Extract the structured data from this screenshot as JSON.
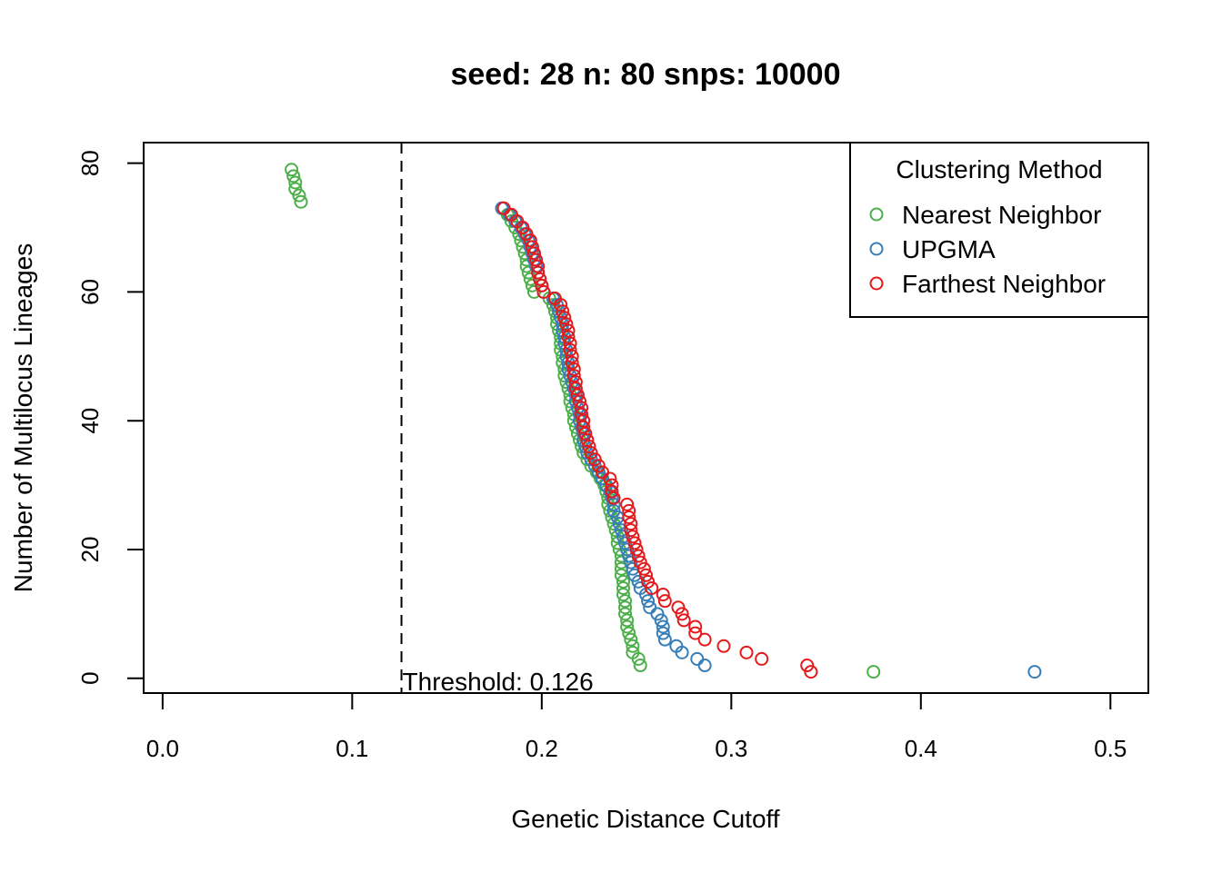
{
  "chart_data": {
    "type": "scatter",
    "title": "seed: 28 n: 80 snps: 10000",
    "xlabel": "Genetic Distance Cutoff",
    "ylabel": "Number of Multilocus Lineages",
    "xlim": [
      -0.01,
      0.52
    ],
    "ylim": [
      -2.3,
      83.2
    ],
    "xticks": [
      0.0,
      0.1,
      0.2,
      0.3,
      0.4,
      0.5
    ],
    "xtick_labels": [
      "0.0",
      "0.1",
      "0.2",
      "0.3",
      "0.4",
      "0.5"
    ],
    "yticks": [
      0,
      20,
      40,
      60,
      80
    ],
    "ytick_labels": [
      "0",
      "20",
      "40",
      "60",
      "80"
    ],
    "grid": false,
    "legend": {
      "title": "Clustering Method",
      "placement": "top-right"
    },
    "threshold": {
      "x": 0.126,
      "label": "Threshold: 0.126",
      "style": "dashed"
    },
    "series": [
      {
        "name": "Nearest Neighbor",
        "color": "#4DAF4A",
        "points": [
          [
            0.068,
            79
          ],
          [
            0.069,
            78
          ],
          [
            0.07,
            77
          ],
          [
            0.07,
            76
          ],
          [
            0.072,
            75
          ],
          [
            0.073,
            74
          ],
          [
            0.179,
            73
          ],
          [
            0.182,
            72
          ],
          [
            0.184,
            71
          ],
          [
            0.186,
            70
          ],
          [
            0.188,
            69
          ],
          [
            0.189,
            68
          ],
          [
            0.19,
            67
          ],
          [
            0.191,
            66
          ],
          [
            0.192,
            65
          ],
          [
            0.192,
            64
          ],
          [
            0.193,
            63
          ],
          [
            0.194,
            62
          ],
          [
            0.195,
            61
          ],
          [
            0.196,
            60
          ],
          [
            0.204,
            59
          ],
          [
            0.206,
            58
          ],
          [
            0.207,
            57
          ],
          [
            0.208,
            56
          ],
          [
            0.208,
            55
          ],
          [
            0.209,
            54
          ],
          [
            0.21,
            53
          ],
          [
            0.21,
            52
          ],
          [
            0.21,
            51
          ],
          [
            0.211,
            50
          ],
          [
            0.211,
            49
          ],
          [
            0.212,
            48
          ],
          [
            0.212,
            47
          ],
          [
            0.213,
            46
          ],
          [
            0.214,
            45
          ],
          [
            0.215,
            44
          ],
          [
            0.215,
            43
          ],
          [
            0.216,
            42
          ],
          [
            0.217,
            41
          ],
          [
            0.217,
            40
          ],
          [
            0.218,
            39
          ],
          [
            0.219,
            38
          ],
          [
            0.22,
            37
          ],
          [
            0.221,
            36
          ],
          [
            0.222,
            35
          ],
          [
            0.224,
            34
          ],
          [
            0.226,
            33
          ],
          [
            0.229,
            32
          ],
          [
            0.231,
            31
          ],
          [
            0.233,
            30
          ],
          [
            0.234,
            29
          ],
          [
            0.235,
            28
          ],
          [
            0.235,
            27
          ],
          [
            0.236,
            26
          ],
          [
            0.237,
            25
          ],
          [
            0.238,
            24
          ],
          [
            0.239,
            23
          ],
          [
            0.24,
            22
          ],
          [
            0.24,
            21
          ],
          [
            0.241,
            20
          ],
          [
            0.242,
            19
          ],
          [
            0.242,
            18
          ],
          [
            0.242,
            17
          ],
          [
            0.242,
            16
          ],
          [
            0.243,
            15
          ],
          [
            0.243,
            14
          ],
          [
            0.243,
            13
          ],
          [
            0.244,
            12
          ],
          [
            0.244,
            11
          ],
          [
            0.244,
            10
          ],
          [
            0.245,
            9
          ],
          [
            0.245,
            8
          ],
          [
            0.246,
            7
          ],
          [
            0.247,
            6
          ],
          [
            0.248,
            5
          ],
          [
            0.248,
            4
          ],
          [
            0.251,
            3
          ],
          [
            0.252,
            2
          ],
          [
            0.375,
            1
          ]
        ]
      },
      {
        "name": "UPGMA",
        "color": "#377EB8",
        "points": [
          [
            0.179,
            73
          ],
          [
            0.183,
            72
          ],
          [
            0.186,
            71
          ],
          [
            0.189,
            70
          ],
          [
            0.191,
            69
          ],
          [
            0.193,
            68
          ],
          [
            0.194,
            67
          ],
          [
            0.195,
            66
          ],
          [
            0.196,
            65
          ],
          [
            0.197,
            64
          ],
          [
            0.198,
            63
          ],
          [
            0.199,
            62
          ],
          [
            0.2,
            61
          ],
          [
            0.201,
            60
          ],
          [
            0.206,
            59
          ],
          [
            0.208,
            58
          ],
          [
            0.209,
            57
          ],
          [
            0.21,
            56
          ],
          [
            0.211,
            55
          ],
          [
            0.211,
            54
          ],
          [
            0.212,
            53
          ],
          [
            0.212,
            52
          ],
          [
            0.213,
            51
          ],
          [
            0.213,
            50
          ],
          [
            0.214,
            49
          ],
          [
            0.214,
            48
          ],
          [
            0.215,
            47
          ],
          [
            0.216,
            46
          ],
          [
            0.217,
            45
          ],
          [
            0.218,
            44
          ],
          [
            0.218,
            43
          ],
          [
            0.219,
            42
          ],
          [
            0.22,
            41
          ],
          [
            0.22,
            40
          ],
          [
            0.221,
            39
          ],
          [
            0.222,
            38
          ],
          [
            0.222,
            37
          ],
          [
            0.223,
            36
          ],
          [
            0.224,
            35
          ],
          [
            0.226,
            34
          ],
          [
            0.228,
            33
          ],
          [
            0.23,
            32
          ],
          [
            0.232,
            31
          ],
          [
            0.234,
            30
          ],
          [
            0.236,
            29
          ],
          [
            0.237,
            28
          ],
          [
            0.238,
            27
          ],
          [
            0.238,
            26
          ],
          [
            0.24,
            25
          ],
          [
            0.241,
            24
          ],
          [
            0.242,
            23
          ],
          [
            0.243,
            22
          ],
          [
            0.244,
            21
          ],
          [
            0.245,
            20
          ],
          [
            0.246,
            19
          ],
          [
            0.247,
            18
          ],
          [
            0.248,
            17
          ],
          [
            0.249,
            16
          ],
          [
            0.251,
            15
          ],
          [
            0.252,
            14
          ],
          [
            0.255,
            13
          ],
          [
            0.256,
            12
          ],
          [
            0.257,
            11
          ],
          [
            0.261,
            10
          ],
          [
            0.263,
            9
          ],
          [
            0.264,
            8
          ],
          [
            0.264,
            7
          ],
          [
            0.265,
            6
          ],
          [
            0.271,
            5
          ],
          [
            0.274,
            4
          ],
          [
            0.282,
            3
          ],
          [
            0.286,
            2
          ],
          [
            0.46,
            1
          ]
        ]
      },
      {
        "name": "Farthest Neighbor",
        "color": "#E41A1C",
        "points": [
          [
            0.18,
            73
          ],
          [
            0.184,
            72
          ],
          [
            0.187,
            71
          ],
          [
            0.19,
            70
          ],
          [
            0.192,
            69
          ],
          [
            0.194,
            68
          ],
          [
            0.195,
            67
          ],
          [
            0.196,
            66
          ],
          [
            0.197,
            65
          ],
          [
            0.198,
            64
          ],
          [
            0.198,
            63
          ],
          [
            0.199,
            62
          ],
          [
            0.2,
            61
          ],
          [
            0.201,
            60
          ],
          [
            0.207,
            59
          ],
          [
            0.21,
            58
          ],
          [
            0.211,
            57
          ],
          [
            0.212,
            56
          ],
          [
            0.213,
            55
          ],
          [
            0.214,
            54
          ],
          [
            0.214,
            53
          ],
          [
            0.215,
            52
          ],
          [
            0.215,
            51
          ],
          [
            0.216,
            50
          ],
          [
            0.216,
            49
          ],
          [
            0.217,
            48
          ],
          [
            0.217,
            47
          ],
          [
            0.218,
            46
          ],
          [
            0.218,
            45
          ],
          [
            0.219,
            44
          ],
          [
            0.22,
            43
          ],
          [
            0.221,
            42
          ],
          [
            0.221,
            41
          ],
          [
            0.222,
            40
          ],
          [
            0.222,
            39
          ],
          [
            0.223,
            38
          ],
          [
            0.224,
            37
          ],
          [
            0.225,
            36
          ],
          [
            0.226,
            35
          ],
          [
            0.228,
            34
          ],
          [
            0.23,
            33
          ],
          [
            0.232,
            32
          ],
          [
            0.236,
            31
          ],
          [
            0.237,
            30
          ],
          [
            0.237,
            29
          ],
          [
            0.238,
            28
          ],
          [
            0.245,
            27
          ],
          [
            0.246,
            26
          ],
          [
            0.246,
            25
          ],
          [
            0.247,
            24
          ],
          [
            0.247,
            23
          ],
          [
            0.248,
            22
          ],
          [
            0.249,
            21
          ],
          [
            0.25,
            20
          ],
          [
            0.251,
            19
          ],
          [
            0.252,
            18
          ],
          [
            0.254,
            17
          ],
          [
            0.255,
            16
          ],
          [
            0.256,
            15
          ],
          [
            0.258,
            14
          ],
          [
            0.264,
            13
          ],
          [
            0.265,
            12
          ],
          [
            0.272,
            11
          ],
          [
            0.274,
            10
          ],
          [
            0.275,
            9
          ],
          [
            0.281,
            8
          ],
          [
            0.281,
            7
          ],
          [
            0.286,
            6
          ],
          [
            0.296,
            5
          ],
          [
            0.308,
            4
          ],
          [
            0.316,
            3
          ],
          [
            0.34,
            2
          ],
          [
            0.342,
            1
          ]
        ]
      }
    ]
  }
}
